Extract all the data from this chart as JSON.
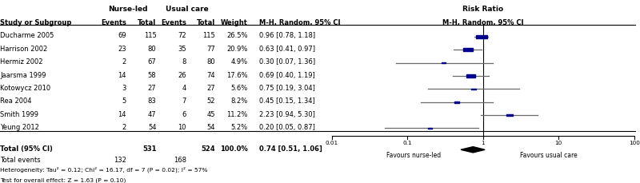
{
  "studies": [
    {
      "name": "Ducharme 2005",
      "nl_events": 69,
      "nl_total": 115,
      "uc_events": 72,
      "uc_total": 115,
      "weight": 26.5,
      "rr": 0.96,
      "ci_low": 0.78,
      "ci_high": 1.18
    },
    {
      "name": "Harrison 2002",
      "nl_events": 23,
      "nl_total": 80,
      "uc_events": 35,
      "uc_total": 77,
      "weight": 20.9,
      "rr": 0.63,
      "ci_low": 0.41,
      "ci_high": 0.97
    },
    {
      "name": "Hermiz 2002",
      "nl_events": 2,
      "nl_total": 67,
      "uc_events": 8,
      "uc_total": 80,
      "weight": 4.9,
      "rr": 0.3,
      "ci_low": 0.07,
      "ci_high": 1.36
    },
    {
      "name": "Jaarsma 1999",
      "nl_events": 14,
      "nl_total": 58,
      "uc_events": 26,
      "uc_total": 74,
      "weight": 17.6,
      "rr": 0.69,
      "ci_low": 0.4,
      "ci_high": 1.19
    },
    {
      "name": "Kotowycz 2010",
      "nl_events": 3,
      "nl_total": 27,
      "uc_events": 4,
      "uc_total": 27,
      "weight": 5.6,
      "rr": 0.75,
      "ci_low": 0.19,
      "ci_high": 3.04
    },
    {
      "name": "Rea 2004",
      "nl_events": 5,
      "nl_total": 83,
      "uc_events": 7,
      "uc_total": 52,
      "weight": 8.2,
      "rr": 0.45,
      "ci_low": 0.15,
      "ci_high": 1.34
    },
    {
      "name": "Smith 1999",
      "nl_events": 14,
      "nl_total": 47,
      "uc_events": 6,
      "uc_total": 45,
      "weight": 11.2,
      "rr": 2.23,
      "ci_low": 0.94,
      "ci_high": 5.3
    },
    {
      "name": "Yeung 2012",
      "nl_events": 2,
      "nl_total": 54,
      "uc_events": 10,
      "uc_total": 54,
      "weight": 5.2,
      "rr": 0.2,
      "ci_low": 0.05,
      "ci_high": 0.87
    }
  ],
  "total_nl_total": 531,
  "total_uc_total": 524,
  "total_nl_events": 132,
  "total_uc_events": 168,
  "total_rr": 0.74,
  "total_ci_low": 0.51,
  "total_ci_high": 1.06,
  "total_weight": 100.0,
  "heterogeneity_text": "Heterogeneity: Tau² = 0.12; Chi² = 16.17, df = 7 (P = 0.02); I² = 57%",
  "overall_text": "Test for overall effect: Z = 1.63 (P = 0.10)",
  "x_ticks": [
    0.01,
    0.1,
    1,
    10,
    100
  ],
  "x_tick_labels": [
    "0.01",
    "0.1",
    "1",
    "10",
    "100"
  ],
  "x_label_left": "Favours nurse-led",
  "x_label_right": "Favours usual care",
  "marker_color": "#00008B",
  "diamond_color": "#000000",
  "line_color": "#696969",
  "ref_line_color": "#000000"
}
